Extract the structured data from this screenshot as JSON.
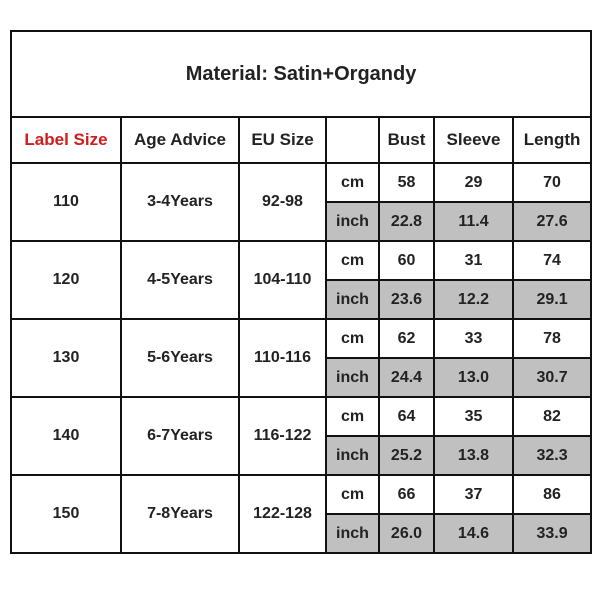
{
  "title": "Material: Satin+Organdy",
  "headers": [
    "Label Size",
    "Age Advice",
    "EU Size",
    "Bust",
    "Sleeve",
    "Length"
  ],
  "rows": [
    {
      "label_size": "110",
      "age_advice": "3-4Years",
      "eu_size": "92-98",
      "cm": {
        "unit": "cm",
        "bust": "58",
        "sleeve": "29",
        "length": "70"
      },
      "inch": {
        "unit": "inch",
        "bust": "22.8",
        "sleeve": "11.4",
        "length": "27.6"
      }
    },
    {
      "label_size": "120",
      "age_advice": "4-5Years",
      "eu_size": "104-110",
      "cm": {
        "unit": "cm",
        "bust": "60",
        "sleeve": "31",
        "length": "74"
      },
      "inch": {
        "unit": "inch",
        "bust": "23.6",
        "sleeve": "12.2",
        "length": "29.1"
      }
    },
    {
      "label_size": "130",
      "age_advice": "5-6Years",
      "eu_size": "110-116",
      "cm": {
        "unit": "cm",
        "bust": "62",
        "sleeve": "33",
        "length": "78"
      },
      "inch": {
        "unit": "inch",
        "bust": "24.4",
        "sleeve": "13.0",
        "length": "30.7"
      }
    },
    {
      "label_size": "140",
      "age_advice": "6-7Years",
      "eu_size": "116-122",
      "cm": {
        "unit": "cm",
        "bust": "64",
        "sleeve": "35",
        "length": "82"
      },
      "inch": {
        "unit": "inch",
        "bust": "25.2",
        "sleeve": "13.8",
        "length": "32.3"
      }
    },
    {
      "label_size": "150",
      "age_advice": "7-8Years",
      "eu_size": "122-128",
      "cm": {
        "unit": "cm",
        "bust": "66",
        "sleeve": "37",
        "length": "86"
      },
      "inch": {
        "unit": "inch",
        "bust": "26.0",
        "sleeve": "14.6",
        "length": "33.9"
      }
    }
  ]
}
